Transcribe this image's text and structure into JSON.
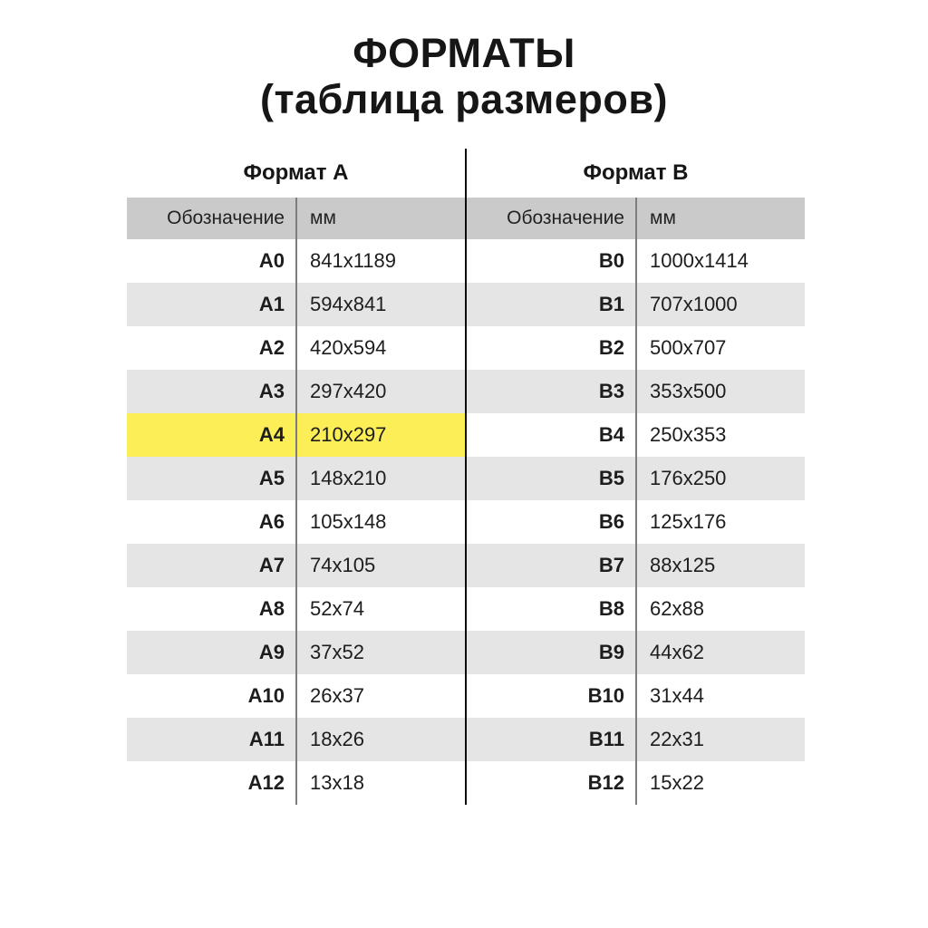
{
  "page_title": {
    "line1": "ФОРМАТЫ",
    "line2": "(таблица размеров)"
  },
  "colors": {
    "header_bg": "#cacaca",
    "row_stripe_bg": "#e5e5e6",
    "highlight_bg": "#fcee57",
    "divider_line": "#0c0c0c",
    "column_rule": "#7d7d7d",
    "text": "#1d1d1d"
  },
  "table": {
    "columns": {
      "designation": "Обозначение",
      "mm": "мм"
    },
    "halves": [
      {
        "title": "Формат А",
        "rows": [
          {
            "designation": "A0",
            "mm": "841x1189",
            "highlight": false
          },
          {
            "designation": "A1",
            "mm": "594x841",
            "highlight": false
          },
          {
            "designation": "A2",
            "mm": "420x594",
            "highlight": false
          },
          {
            "designation": "A3",
            "mm": "297x420",
            "highlight": false
          },
          {
            "designation": "A4",
            "mm": "210x297",
            "highlight": true
          },
          {
            "designation": "A5",
            "mm": "148x210",
            "highlight": false
          },
          {
            "designation": "A6",
            "mm": "105x148",
            "highlight": false
          },
          {
            "designation": "A7",
            "mm": "74x105",
            "highlight": false
          },
          {
            "designation": "A8",
            "mm": "52x74",
            "highlight": false
          },
          {
            "designation": "A9",
            "mm": "37x52",
            "highlight": false
          },
          {
            "designation": "A10",
            "mm": "26x37",
            "highlight": false
          },
          {
            "designation": "A11",
            "mm": "18x26",
            "highlight": false
          },
          {
            "designation": "A12",
            "mm": "13x18",
            "highlight": false
          }
        ]
      },
      {
        "title": "Формат В",
        "rows": [
          {
            "designation": "B0",
            "mm": "1000x1414",
            "highlight": false
          },
          {
            "designation": "B1",
            "mm": "707x1000",
            "highlight": false
          },
          {
            "designation": "B2",
            "mm": "500x707",
            "highlight": false
          },
          {
            "designation": "B3",
            "mm": "353x500",
            "highlight": false
          },
          {
            "designation": "B4",
            "mm": "250x353",
            "highlight": false
          },
          {
            "designation": "B5",
            "mm": "176x250",
            "highlight": false
          },
          {
            "designation": "B6",
            "mm": "125x176",
            "highlight": false
          },
          {
            "designation": "B7",
            "mm": "88x125",
            "highlight": false
          },
          {
            "designation": "B8",
            "mm": "62x88",
            "highlight": false
          },
          {
            "designation": "B9",
            "mm": "44x62",
            "highlight": false
          },
          {
            "designation": "B10",
            "mm": "31x44",
            "highlight": false
          },
          {
            "designation": "B11",
            "mm": "22x31",
            "highlight": false
          },
          {
            "designation": "B12",
            "mm": "15x22",
            "highlight": false
          }
        ]
      }
    ]
  }
}
